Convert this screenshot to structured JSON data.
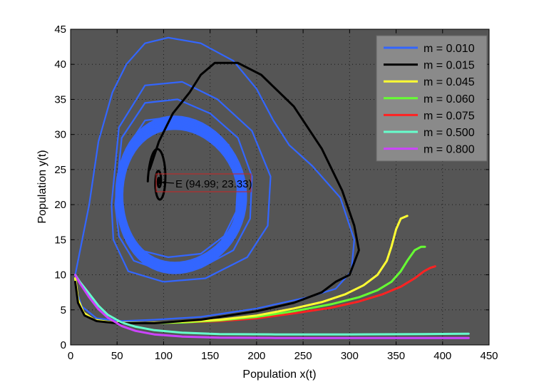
{
  "chart_data": {
    "type": "line",
    "title": "",
    "xlabel": "Population x(t)",
    "ylabel": "Population y(t)",
    "xlim": [
      0,
      450
    ],
    "ylim": [
      0,
      45
    ],
    "xticks": [
      0,
      50,
      100,
      150,
      200,
      250,
      300,
      350,
      400,
      450
    ],
    "yticks": [
      0,
      5,
      10,
      15,
      20,
      25,
      30,
      35,
      40,
      45
    ],
    "grid": true,
    "legend_position": "top-right",
    "background": "#555555",
    "annotation": {
      "text": "E (94.99; 23.33)",
      "point": [
        94.99,
        23.33
      ]
    },
    "series": [
      {
        "name": "m = 0.010",
        "color": "#3366ff",
        "kind": "limit-cycle",
        "outer": [
          [
            5,
            10
          ],
          [
            20,
            20
          ],
          [
            30,
            29
          ],
          [
            45,
            36
          ],
          [
            60,
            40
          ],
          [
            80,
            43
          ],
          [
            105,
            43.8
          ],
          [
            140,
            43
          ],
          [
            175,
            40.5
          ],
          [
            200,
            36.5
          ],
          [
            218,
            32
          ],
          [
            235,
            28.5
          ],
          [
            260,
            25.5
          ],
          [
            290,
            21
          ],
          [
            305,
            15
          ],
          [
            302,
            10.5
          ],
          [
            285,
            8
          ],
          [
            255,
            6.8
          ],
          [
            200,
            5.2
          ],
          [
            140,
            4
          ],
          [
            90,
            3.6
          ],
          [
            55,
            3.4
          ],
          [
            28,
            3.8
          ],
          [
            12,
            5.5
          ],
          [
            7,
            7.5
          ],
          [
            5,
            10
          ]
        ],
        "band": {
          "cx": 112,
          "cy": 20.5,
          "rx_min": 62,
          "rx_max": 70,
          "ry_min": 9.5,
          "ry_max": 11.2
        },
        "transient_loops": [
          [
            [
              54,
              20
            ],
            [
              60,
              28
            ],
            [
              80,
              32
            ],
            [
              110,
              32.5
            ],
            [
              145,
              31
            ],
            [
              170,
              28.5
            ],
            [
              180,
              24
            ],
            [
              178,
              19
            ],
            [
              165,
              15.5
            ],
            [
              140,
              13
            ],
            [
              105,
              12.5
            ],
            [
              75,
              13.5
            ],
            [
              58,
              16
            ],
            [
              54,
              20
            ]
          ],
          [
            [
              48,
              20
            ],
            [
              55,
              29.5
            ],
            [
              80,
              34.5
            ],
            [
              115,
              35
            ],
            [
              150,
              33
            ],
            [
              180,
              29.5
            ],
            [
              195,
              24
            ],
            [
              193,
              18
            ],
            [
              175,
              13.5
            ],
            [
              140,
              11
            ],
            [
              100,
              10.5
            ],
            [
              68,
              12
            ],
            [
              52,
              15.5
            ],
            [
              48,
              20
            ]
          ],
          [
            [
              44,
              20
            ],
            [
              52,
              31
            ],
            [
              80,
              37
            ],
            [
              120,
              37.5
            ],
            [
              158,
              35
            ],
            [
              195,
              30.5
            ],
            [
              215,
              24
            ],
            [
              212,
              17
            ],
            [
              190,
              12.5
            ],
            [
              145,
              9.5
            ],
            [
              100,
              9
            ],
            [
              62,
              10.5
            ],
            [
              46,
              15
            ],
            [
              44,
              20
            ]
          ]
        ]
      },
      {
        "name": "m = 0.015",
        "color": "#000000",
        "kind": "spiral",
        "outer": [
          [
            5,
            9
          ],
          [
            8,
            6
          ],
          [
            15,
            4.2
          ],
          [
            28,
            3.4
          ],
          [
            50,
            3.1
          ],
          [
            90,
            3.1
          ],
          [
            140,
            3.6
          ],
          [
            200,
            4.8
          ],
          [
            240,
            6
          ],
          [
            270,
            7.5
          ],
          [
            285,
            9
          ],
          [
            300,
            10
          ],
          [
            310,
            13.5
          ],
          [
            305,
            17
          ],
          [
            292,
            22
          ],
          [
            270,
            28
          ],
          [
            240,
            34
          ],
          [
            205,
            38.5
          ],
          [
            180,
            40.2
          ],
          [
            155,
            40.2
          ],
          [
            140,
            38.5
          ],
          [
            128,
            36
          ],
          [
            110,
            33
          ],
          [
            95,
            29
          ],
          [
            85,
            25
          ]
        ],
        "spiral": {
          "cx": 95,
          "cy": 23.33,
          "r0x": 12,
          "r0y": 6,
          "decay": 0.18,
          "turns": 4,
          "phase0": 3.14
        }
      },
      {
        "name": "m = 0.045",
        "color": "#ffff33",
        "kind": "curve",
        "points": [
          [
            5,
            9.5
          ],
          [
            8,
            6.5
          ],
          [
            14,
            4.6
          ],
          [
            25,
            3.6
          ],
          [
            45,
            3.2
          ],
          [
            80,
            3.1
          ],
          [
            120,
            3.3
          ],
          [
            160,
            3.6
          ],
          [
            200,
            4.2
          ],
          [
            240,
            5.2
          ],
          [
            270,
            6.1
          ],
          [
            295,
            7.2
          ],
          [
            315,
            8.5
          ],
          [
            330,
            10
          ],
          [
            340,
            12
          ],
          [
            345,
            14
          ],
          [
            350,
            16.5
          ],
          [
            355,
            18
          ],
          [
            362,
            18.4
          ]
        ]
      },
      {
        "name": "m = 0.060",
        "color": "#66ff33",
        "kind": "curve",
        "points": [
          [
            5,
            9.5
          ],
          [
            8,
            6.5
          ],
          [
            14,
            4.6
          ],
          [
            25,
            3.6
          ],
          [
            45,
            3.2
          ],
          [
            80,
            3.1
          ],
          [
            120,
            3.2
          ],
          [
            160,
            3.5
          ],
          [
            200,
            4
          ],
          [
            240,
            4.8
          ],
          [
            280,
            5.8
          ],
          [
            310,
            6.8
          ],
          [
            330,
            7.8
          ],
          [
            345,
            9
          ],
          [
            355,
            10.5
          ],
          [
            362,
            12
          ],
          [
            370,
            13.5
          ],
          [
            377,
            14
          ],
          [
            381,
            14
          ]
        ]
      },
      {
        "name": "m = 0.075",
        "color": "#ff2222",
        "kind": "curve",
        "points": [
          [
            5,
            9.5
          ],
          [
            8,
            6.5
          ],
          [
            14,
            4.6
          ],
          [
            25,
            3.6
          ],
          [
            45,
            3.2
          ],
          [
            80,
            3.1
          ],
          [
            120,
            3.2
          ],
          [
            160,
            3.4
          ],
          [
            200,
            3.8
          ],
          [
            240,
            4.5
          ],
          [
            280,
            5.3
          ],
          [
            310,
            6.2
          ],
          [
            335,
            7.2
          ],
          [
            355,
            8.3
          ],
          [
            370,
            9.5
          ],
          [
            380,
            10.5
          ],
          [
            387,
            11
          ],
          [
            392,
            11.2
          ]
        ]
      },
      {
        "name": "m = 0.500",
        "color": "#66ffcc",
        "kind": "curve",
        "points": [
          [
            5,
            10
          ],
          [
            10,
            9
          ],
          [
            20,
            7.3
          ],
          [
            30,
            5.6
          ],
          [
            40,
            4.3
          ],
          [
            55,
            3.2
          ],
          [
            70,
            2.6
          ],
          [
            90,
            2.1
          ],
          [
            120,
            1.75
          ],
          [
            160,
            1.55
          ],
          [
            220,
            1.5
          ],
          [
            300,
            1.5
          ],
          [
            380,
            1.55
          ],
          [
            428,
            1.6
          ]
        ]
      },
      {
        "name": "m = 0.800",
        "color": "#cc44ff",
        "kind": "curve",
        "points": [
          [
            5,
            10
          ],
          [
            10,
            8.8
          ],
          [
            20,
            6.8
          ],
          [
            30,
            5.1
          ],
          [
            40,
            3.9
          ],
          [
            55,
            2.7
          ],
          [
            70,
            2
          ],
          [
            90,
            1.5
          ],
          [
            120,
            1.2
          ],
          [
            160,
            1.05
          ],
          [
            220,
            1
          ],
          [
            300,
            1
          ],
          [
            380,
            1
          ],
          [
            428,
            1
          ]
        ]
      }
    ]
  }
}
